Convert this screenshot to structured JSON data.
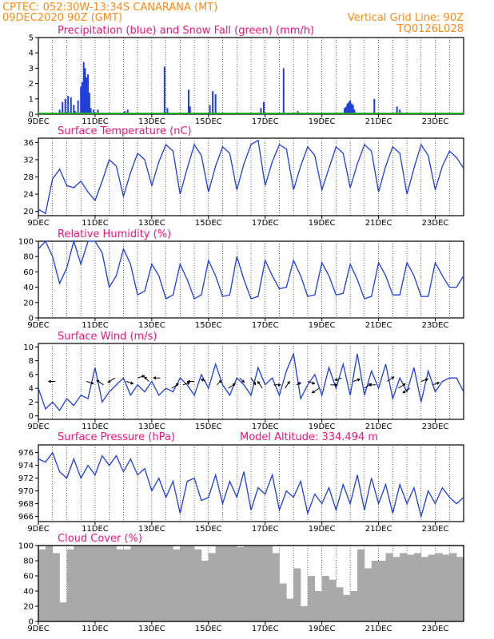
{
  "header": {
    "line1": "CPTEC:  052:30W-13:34S  CANARANA (MT)",
    "line2": "09DEC2020 90Z (GMT)",
    "grid_note": "Vertical Grid Line: 90Z",
    "code": "TQ0126L028"
  },
  "colors": {
    "header": "#ff8c1a",
    "title": "#e8187c",
    "line": "#1f3fd8",
    "snow": "#1faa1f",
    "cloud": "#a9a9a9"
  },
  "x_ticks": [
    "9DEC",
    "11DEC",
    "13DEC",
    "15DEC",
    "17DEC",
    "19DEC",
    "21DEC",
    "23DEC"
  ],
  "chart_data": [
    {
      "type": "bar",
      "id": "precip",
      "title": "Precipitation (blue) and Snow Fall (green) (mm/h)",
      "xlim": [
        0,
        15
      ],
      "ylim": [
        0,
        5
      ],
      "yticks": [
        0,
        1,
        2,
        3,
        4,
        5
      ],
      "series": [
        {
          "name": "Precipitation",
          "color": "#1f3fd8",
          "x": [
            0.75,
            0.85,
            0.95,
            1.05,
            1.15,
            1.25,
            1.3,
            1.4,
            1.5,
            1.55,
            1.6,
            1.65,
            1.7,
            1.75,
            1.8,
            1.85,
            1.95,
            2.1,
            3.05,
            3.15,
            4.45,
            4.55,
            5.3,
            5.35,
            6.05,
            6.15,
            6.25,
            7.85,
            7.95,
            8.65,
            9.15,
            10.8,
            10.85,
            10.9,
            10.95,
            11.0,
            11.05,
            11.1,
            11.15,
            11.85,
            12.65,
            12.75
          ],
          "y": [
            0.3,
            0.8,
            1.0,
            1.2,
            1.1,
            0.6,
            0.2,
            0.9,
            1.8,
            2.1,
            3.4,
            3.0,
            2.4,
            2.6,
            1.4,
            0.4,
            0.3,
            0.3,
            0.2,
            0.3,
            3.1,
            0.4,
            1.6,
            0.5,
            0.6,
            1.5,
            1.3,
            0.4,
            0.8,
            3.0,
            0.2,
            0.4,
            0.5,
            0.7,
            0.8,
            0.9,
            0.7,
            0.6,
            0.3,
            1.0,
            0.5,
            0.3
          ]
        },
        {
          "name": "Snow Fall",
          "color": "#1faa1f",
          "x": [
            0,
            15
          ],
          "y": [
            0.05,
            0.05
          ]
        }
      ]
    },
    {
      "type": "line",
      "id": "temp",
      "title": "Surface Temperature (nC)",
      "xlim": [
        0,
        15
      ],
      "ylim": [
        19,
        37
      ],
      "yticks": [
        20,
        24,
        28,
        32,
        36
      ],
      "x": [
        0,
        0.25,
        0.5,
        0.75,
        1.0,
        1.25,
        1.5,
        1.75,
        2.0,
        2.25,
        2.5,
        2.75,
        3.0,
        3.25,
        3.5,
        3.75,
        4.0,
        4.25,
        4.5,
        4.75,
        5.0,
        5.25,
        5.5,
        5.75,
        6.0,
        6.25,
        6.5,
        6.75,
        7.0,
        7.25,
        7.5,
        7.75,
        8.0,
        8.25,
        8.5,
        8.75,
        9.0,
        9.25,
        9.5,
        9.75,
        10.0,
        10.25,
        10.5,
        10.75,
        11.0,
        11.25,
        11.5,
        11.75,
        12.0,
        12.25,
        12.5,
        12.75,
        13.0,
        13.25,
        13.5,
        13.75,
        14.0,
        14.25,
        14.5,
        14.75,
        15.0
      ],
      "y": [
        20.5,
        19.5,
        27.5,
        29.8,
        26.0,
        25.5,
        27.0,
        24.5,
        22.5,
        27.0,
        32.0,
        30.5,
        23.5,
        29.0,
        33.5,
        32.0,
        26.0,
        31.5,
        35.5,
        34.0,
        24.0,
        30.0,
        35.5,
        33.0,
        24.5,
        30.5,
        35.0,
        33.5,
        25.0,
        31.0,
        35.5,
        36.5,
        26.0,
        31.5,
        35.5,
        34.5,
        25.0,
        30.5,
        35.0,
        33.0,
        25.0,
        30.0,
        35.0,
        33.5,
        25.5,
        31.0,
        35.5,
        34.0,
        24.5,
        30.5,
        35.0,
        33.5,
        24.0,
        30.0,
        35.5,
        33.0,
        25.0,
        30.5,
        34.0,
        32.5,
        30.0
      ]
    },
    {
      "type": "line",
      "id": "rh",
      "title": "Relative Humidity (%)",
      "xlim": [
        0,
        15
      ],
      "ylim": [
        0,
        100
      ],
      "yticks": [
        0,
        20,
        40,
        60,
        80,
        100
      ],
      "x": [
        0,
        0.25,
        0.5,
        0.75,
        1.0,
        1.25,
        1.5,
        1.75,
        2.0,
        2.25,
        2.5,
        2.75,
        3.0,
        3.25,
        3.5,
        3.75,
        4.0,
        4.25,
        4.5,
        4.75,
        5.0,
        5.25,
        5.5,
        5.75,
        6.0,
        6.25,
        6.5,
        6.75,
        7.0,
        7.25,
        7.5,
        7.75,
        8.0,
        8.25,
        8.5,
        8.75,
        9.0,
        9.25,
        9.5,
        9.75,
        10.0,
        10.25,
        10.5,
        10.75,
        11.0,
        11.25,
        11.5,
        11.75,
        12.0,
        12.25,
        12.5,
        12.75,
        13.0,
        13.25,
        13.5,
        13.75,
        14.0,
        14.25,
        14.5,
        14.75,
        15.0
      ],
      "y": [
        90,
        100,
        80,
        45,
        65,
        100,
        70,
        100,
        100,
        85,
        40,
        55,
        90,
        70,
        30,
        35,
        70,
        55,
        25,
        30,
        70,
        50,
        25,
        30,
        75,
        55,
        28,
        30,
        80,
        50,
        25,
        28,
        75,
        55,
        38,
        40,
        75,
        55,
        28,
        30,
        72,
        55,
        30,
        32,
        70,
        50,
        25,
        28,
        72,
        55,
        30,
        30,
        72,
        55,
        28,
        28,
        72,
        55,
        40,
        40,
        55
      ]
    },
    {
      "type": "line",
      "id": "wind",
      "title": "Surface Wind (m/s)",
      "xlim": [
        0,
        15
      ],
      "ylim": [
        -0.5,
        10.5
      ],
      "yticks": [
        0,
        2,
        4,
        6,
        8,
        10
      ],
      "x": [
        0,
        0.25,
        0.5,
        0.75,
        1.0,
        1.25,
        1.5,
        1.75,
        2.0,
        2.25,
        2.5,
        2.75,
        3.0,
        3.25,
        3.5,
        3.75,
        4.0,
        4.25,
        4.5,
        4.75,
        5.0,
        5.25,
        5.5,
        5.75,
        6.0,
        6.25,
        6.5,
        6.75,
        7.0,
        7.25,
        7.5,
        7.75,
        8.0,
        8.25,
        8.5,
        8.75,
        9.0,
        9.25,
        9.5,
        9.75,
        10.0,
        10.25,
        10.5,
        10.75,
        11.0,
        11.25,
        11.5,
        11.75,
        12.0,
        12.25,
        12.5,
        12.75,
        13.0,
        13.25,
        13.5,
        13.75,
        14.0,
        14.25,
        14.5,
        14.75,
        15.0
      ],
      "y": [
        4.0,
        1.0,
        2.0,
        0.8,
        2.5,
        1.5,
        3.0,
        2.5,
        7.0,
        2.0,
        3.5,
        4.5,
        5.5,
        3.0,
        4.5,
        3.5,
        5.0,
        3.0,
        4.0,
        3.5,
        5.5,
        4.5,
        3.0,
        6.0,
        4.0,
        7.5,
        4.5,
        3.0,
        5.5,
        4.5,
        3.0,
        7.0,
        4.5,
        5.5,
        3.0,
        6.5,
        9.0,
        2.5,
        4.5,
        6.0,
        3.0,
        7.0,
        4.0,
        7.5,
        3.0,
        9.0,
        3.0,
        6.5,
        4.0,
        7.5,
        2.5,
        5.5,
        3.5,
        7.0,
        2.0,
        6.5,
        3.5,
        5.0,
        5.5,
        5.5,
        3.5
      ],
      "vectors": {
        "x": [
          0.6,
          1.7,
          2.3,
          2.7,
          3.1,
          3.5,
          3.9,
          4.3,
          4.7,
          5.1,
          5.5,
          5.9,
          6.3,
          6.7,
          7.1,
          7.5,
          7.9,
          8.3,
          8.7,
          9.1,
          9.5,
          9.9,
          10.3,
          10.7,
          11.1,
          11.5,
          11.9,
          12.3,
          12.7,
          13.1,
          13.5,
          13.9
        ],
        "y": [
          5.0,
          5.0,
          4.5,
          5.5,
          5.0,
          5.5,
          5.0,
          5.5,
          4.0,
          4.5,
          5.0,
          5.0,
          4.5,
          4.0,
          5.5,
          5.5,
          4.0,
          4.5,
          4.0,
          4.5,
          5.0,
          4.0,
          4.5,
          5.5,
          5.0,
          4.0,
          4.5,
          5.0,
          4.0,
          4.0,
          5.0,
          4.5
        ],
        "u": [
          -1.5,
          1.5,
          -1.5,
          -1.5,
          1.5,
          1.5,
          -1.0,
          -1.5,
          1.5,
          1.5,
          -1.5,
          -1.0,
          1.0,
          1.5,
          1.0,
          1.0,
          -1.0,
          1.5,
          1.0,
          1.0,
          1.5,
          -1.5,
          1.5,
          -1.5,
          1.5,
          1.5,
          -1.5,
          1.5,
          1.5,
          -1.5,
          1.5,
          1.5
        ],
        "v": [
          0.0,
          -0.5,
          1.0,
          -1.0,
          -0.5,
          0.5,
          1.0,
          0.0,
          1.0,
          0.5,
          0.0,
          0.5,
          1.0,
          1.0,
          -1.0,
          -1.5,
          1.5,
          0.0,
          1.5,
          0.5,
          -0.5,
          -1.0,
          0.0,
          -0.5,
          0.5,
          1.0,
          0.0,
          1.0,
          1.0,
          -1.0,
          0.5,
          0.5
        ]
      }
    },
    {
      "type": "line",
      "id": "pressure",
      "title": "Surface Pressure (hPa)",
      "altitude_label": "Model Altitude: 334.494 m",
      "xlim": [
        0,
        15
      ],
      "ylim": [
        965.2,
        977.2
      ],
      "yticks": [
        966,
        968,
        970,
        972,
        974,
        976
      ],
      "x": [
        0,
        0.25,
        0.5,
        0.75,
        1.0,
        1.25,
        1.5,
        1.75,
        2.0,
        2.25,
        2.5,
        2.75,
        3.0,
        3.25,
        3.5,
        3.75,
        4.0,
        4.25,
        4.5,
        4.75,
        5.0,
        5.25,
        5.5,
        5.75,
        6.0,
        6.25,
        6.5,
        6.75,
        7.0,
        7.25,
        7.5,
        7.75,
        8.0,
        8.25,
        8.5,
        8.75,
        9.0,
        9.25,
        9.5,
        9.75,
        10.0,
        10.25,
        10.5,
        10.75,
        11.0,
        11.25,
        11.5,
        11.75,
        12.0,
        12.25,
        12.5,
        12.75,
        13.0,
        13.25,
        13.5,
        13.75,
        14.0,
        14.25,
        14.5,
        14.75,
        15.0
      ],
      "y": [
        975.0,
        974.5,
        976.0,
        973.0,
        972.0,
        975.0,
        972.0,
        974.0,
        972.5,
        975.5,
        974.0,
        975.5,
        973.0,
        975.0,
        972.5,
        973.5,
        970.0,
        972.0,
        969.0,
        971.5,
        966.5,
        971.5,
        972.0,
        968.5,
        969.0,
        972.5,
        968.0,
        971.5,
        969.0,
        973.0,
        967.0,
        970.5,
        969.5,
        972.5,
        967.0,
        970.0,
        969.0,
        971.5,
        966.5,
        969.5,
        968.0,
        970.5,
        967.0,
        971.0,
        968.0,
        972.5,
        967.0,
        972.0,
        968.0,
        971.0,
        966.5,
        971.0,
        968.0,
        970.5,
        966.0,
        970.0,
        968.0,
        970.5,
        969.0,
        968.0,
        969.0
      ]
    },
    {
      "type": "bar",
      "id": "cloud",
      "title": "Cloud Cover (%)",
      "xlim": [
        0,
        15
      ],
      "ylim": [
        0,
        100
      ],
      "yticks": [
        0,
        20,
        40,
        60,
        80,
        100
      ],
      "series": [
        {
          "name": "Cloud Cover",
          "color": "#a9a9a9",
          "x": [
            0,
            0.25,
            0.5,
            0.75,
            1.0,
            1.25,
            1.5,
            1.75,
            2.0,
            2.25,
            2.5,
            2.75,
            3.0,
            3.25,
            3.5,
            3.75,
            4.0,
            4.25,
            4.5,
            4.75,
            5.0,
            5.25,
            5.5,
            5.75,
            6.0,
            6.25,
            6.5,
            6.75,
            7.0,
            7.25,
            7.5,
            7.75,
            8.0,
            8.25,
            8.5,
            8.75,
            9.0,
            9.25,
            9.5,
            9.75,
            10.0,
            10.25,
            10.5,
            10.75,
            11.0,
            11.25,
            11.5,
            11.75,
            12.0,
            12.25,
            12.5,
            12.75,
            13.0,
            13.25,
            13.5,
            13.75,
            14.0,
            14.25,
            14.5,
            14.75
          ],
          "y": [
            95,
            100,
            90,
            25,
            95,
            100,
            100,
            100,
            100,
            100,
            100,
            95,
            95,
            100,
            100,
            100,
            100,
            100,
            100,
            95,
            100,
            100,
            95,
            80,
            90,
            100,
            100,
            100,
            98,
            100,
            100,
            100,
            100,
            90,
            50,
            30,
            70,
            20,
            60,
            40,
            60,
            55,
            45,
            35,
            40,
            95,
            70,
            80,
            80,
            90,
            85,
            90,
            88,
            90,
            85,
            88,
            90,
            88,
            90,
            85
          ]
        }
      ]
    }
  ]
}
